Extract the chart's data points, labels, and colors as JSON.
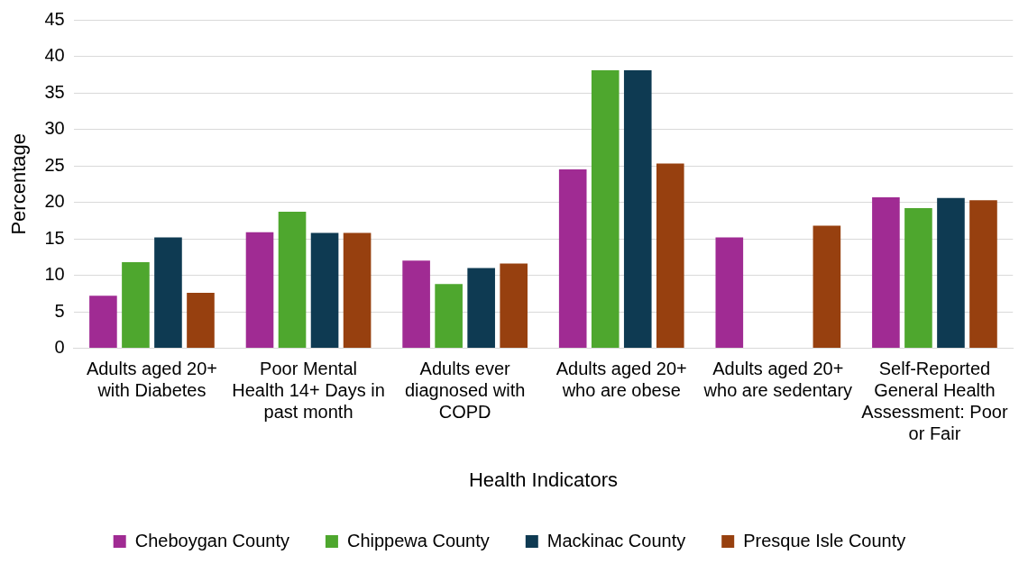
{
  "chart_data": {
    "type": "bar",
    "xlabel": "Health Indicators",
    "ylabel": "Percentage",
    "categories": [
      "Adults aged 20+ with Diabetes",
      "Poor Mental Health 14+ Days in past month",
      "Adults ever diagnosed with COPD",
      "Adults aged 20+ who are obese",
      "Adults aged 20+ who are sedentary",
      "Self-Reported General Health Assessment: Poor or Fair"
    ],
    "series": [
      {
        "name": "Cheboygan County",
        "color": "#a02b93",
        "values": [
          7.2,
          15.9,
          12.0,
          24.5,
          15.2,
          20.7
        ]
      },
      {
        "name": "Chippewa County",
        "color": "#4ea72e",
        "values": [
          11.8,
          18.7,
          8.8,
          38.1,
          null,
          19.2
        ]
      },
      {
        "name": "Mackinac County",
        "color": "#0e3a52",
        "values": [
          15.2,
          15.8,
          11.0,
          38.1,
          null,
          20.6
        ]
      },
      {
        "name": "Presque Isle County",
        "color": "#97400f",
        "values": [
          7.6,
          15.8,
          11.6,
          25.3,
          16.8,
          20.3
        ]
      }
    ],
    "ylim": [
      0,
      45
    ],
    "yticks": [
      0,
      5,
      10,
      15,
      20,
      25,
      30,
      35,
      40,
      45
    ],
    "grid": "y",
    "legend": "bottom"
  }
}
